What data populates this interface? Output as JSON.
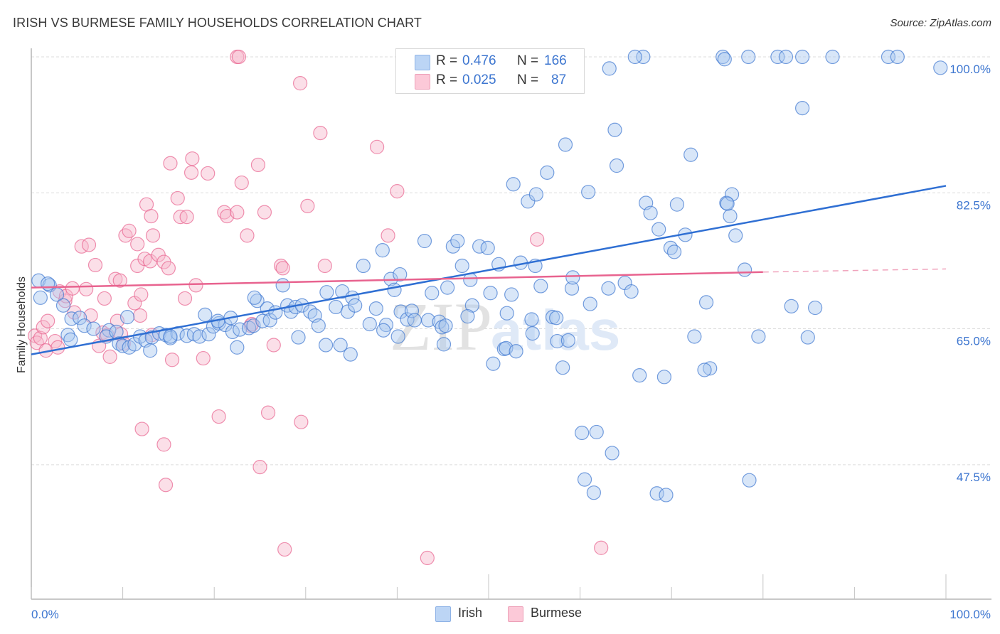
{
  "header": {
    "title": "IRISH VS BURMESE FAMILY HOUSEHOLDS CORRELATION CHART",
    "source": "Source: ZipAtlas.com"
  },
  "legend_box": {
    "rows": [
      {
        "r_label": "R =",
        "r_value": "0.476",
        "n_label": "N =",
        "n_value": "166",
        "color": "#a9c8f0"
      },
      {
        "r_label": "R =",
        "r_value": "0.025",
        "n_label": "N =",
        "n_value": "87",
        "color": "#f7b8cb"
      }
    ]
  },
  "bottom_legend": [
    {
      "label": "Irish",
      "color": "#a9c8f0"
    },
    {
      "label": "Burmese",
      "color": "#f7b8cb"
    }
  ],
  "watermark": {
    "zip": "ZIP",
    "atlas": "atlas"
  },
  "chart_data": {
    "type": "scatter",
    "title": "IRISH VS BURMESE FAMILY HOUSEHOLDS CORRELATION CHART",
    "xlabel": "",
    "ylabel": "Family Households",
    "xlim": [
      0,
      100
    ],
    "ylim": [
      30.2,
      101.5
    ],
    "x_tick_labels": [
      "0.0%",
      "100.0%"
    ],
    "y_ticks": [
      47.5,
      65.0,
      82.5,
      100.0
    ],
    "y_tick_labels": [
      "47.5%",
      "65.0%",
      "82.5%",
      "100.0%"
    ],
    "grid": true,
    "legend": "bottom-center",
    "series": [
      {
        "name": "Irish",
        "color": "#3d76d0",
        "fill": "#a9c8f0",
        "R": 0.476,
        "N": 166,
        "trend": {
          "x": [
            0,
            100
          ],
          "y": [
            61.7,
            83.4
          ]
        },
        "points": [
          [
            0.8,
            71.2
          ],
          [
            1.0,
            69.0
          ],
          [
            2.0,
            70.6
          ],
          [
            2.8,
            69.4
          ],
          [
            3.5,
            68.0
          ],
          [
            1.8,
            70.8
          ],
          [
            4.4,
            66.3
          ],
          [
            5.3,
            66.4
          ],
          [
            5.8,
            65.4
          ],
          [
            4.0,
            64.2
          ],
          [
            4.3,
            63.6
          ],
          [
            6.8,
            65.0
          ],
          [
            8.5,
            64.8
          ],
          [
            8.2,
            64.0
          ],
          [
            9.3,
            64.6
          ],
          [
            9.6,
            63.1
          ],
          [
            10.0,
            62.8
          ],
          [
            10.7,
            62.6
          ],
          [
            11.3,
            63.0
          ],
          [
            11.9,
            64.0
          ],
          [
            12.5,
            63.5
          ],
          [
            13.2,
            63.9
          ],
          [
            13.0,
            62.2
          ],
          [
            14.0,
            64.4
          ],
          [
            14.7,
            64.2
          ],
          [
            15.2,
            63.8
          ],
          [
            16.0,
            64.4
          ],
          [
            17.0,
            64.1
          ],
          [
            17.8,
            64.3
          ],
          [
            18.4,
            64.0
          ],
          [
            19.0,
            66.8
          ],
          [
            19.4,
            64.3
          ],
          [
            19.9,
            65.3
          ],
          [
            20.5,
            65.7
          ],
          [
            21.2,
            65.5
          ],
          [
            21.8,
            66.4
          ],
          [
            22.0,
            64.6
          ],
          [
            22.5,
            62.6
          ],
          [
            22.8,
            64.9
          ],
          [
            23.8,
            65.1
          ],
          [
            24.7,
            68.6
          ],
          [
            24.3,
            65.4
          ],
          [
            25.3,
            66.0
          ],
          [
            25.8,
            67.6
          ],
          [
            26.1,
            66.1
          ],
          [
            26.7,
            67.1
          ],
          [
            27.5,
            70.6
          ],
          [
            28.0,
            68.0
          ],
          [
            28.4,
            67.2
          ],
          [
            28.9,
            67.8
          ],
          [
            29.6,
            68.0
          ],
          [
            30.5,
            67.2
          ],
          [
            31.0,
            66.7
          ],
          [
            31.4,
            65.4
          ],
          [
            32.3,
            69.7
          ],
          [
            32.2,
            62.9
          ],
          [
            33.3,
            67.8
          ],
          [
            33.8,
            62.9
          ],
          [
            34.0,
            69.8
          ],
          [
            34.6,
            67.2
          ],
          [
            35.1,
            69.0
          ],
          [
            34.9,
            61.7
          ],
          [
            35.4,
            68.0
          ],
          [
            36.3,
            73.1
          ],
          [
            37.0,
            65.6
          ],
          [
            37.7,
            67.6
          ],
          [
            38.4,
            75.1
          ],
          [
            38.8,
            65.5
          ],
          [
            39.3,
            71.4
          ],
          [
            39.7,
            70.0
          ],
          [
            40.3,
            72.0
          ],
          [
            40.4,
            67.2
          ],
          [
            40.1,
            64.0
          ],
          [
            41.1,
            66.2
          ],
          [
            41.6,
            67.3
          ],
          [
            41.9,
            66.1
          ],
          [
            43.0,
            76.3
          ],
          [
            43.4,
            66.1
          ],
          [
            43.8,
            69.6
          ],
          [
            44.6,
            65.9
          ],
          [
            44.9,
            65.2
          ],
          [
            45.3,
            65.4
          ],
          [
            45.5,
            70.3
          ],
          [
            46.1,
            75.6
          ],
          [
            46.6,
            76.3
          ],
          [
            47.1,
            73.1
          ],
          [
            48.0,
            71.3
          ],
          [
            48.2,
            68.0
          ],
          [
            49.0,
            75.6
          ],
          [
            49.9,
            75.4
          ],
          [
            50.2,
            69.6
          ],
          [
            50.5,
            60.5
          ],
          [
            51.1,
            73.3
          ],
          [
            51.7,
            62.4
          ],
          [
            51.9,
            62.5
          ],
          [
            52.0,
            67.0
          ],
          [
            52.5,
            69.4
          ],
          [
            52.7,
            83.6
          ],
          [
            53.5,
            73.5
          ],
          [
            54.3,
            81.4
          ],
          [
            54.7,
            66.2
          ],
          [
            54.8,
            64.4
          ],
          [
            55.1,
            73.1
          ],
          [
            55.2,
            82.3
          ],
          [
            55.7,
            70.5
          ],
          [
            56.4,
            85.1
          ],
          [
            57.0,
            66.5
          ],
          [
            57.5,
            63.4
          ],
          [
            58.4,
            88.7
          ],
          [
            58.1,
            60.0
          ],
          [
            59.1,
            70.2
          ],
          [
            60.2,
            51.6
          ],
          [
            60.9,
            82.6
          ],
          [
            61.1,
            68.2
          ],
          [
            61.5,
            43.9
          ],
          [
            63.1,
            70.2
          ],
          [
            63.8,
            90.6
          ],
          [
            63.5,
            49.0
          ],
          [
            64.0,
            86.0
          ],
          [
            64.9,
            70.9
          ],
          [
            65.6,
            69.8
          ],
          [
            67.2,
            81.2
          ],
          [
            67.7,
            79.9
          ],
          [
            68.6,
            77.8
          ],
          [
            69.2,
            58.8
          ],
          [
            69.9,
            75.4
          ],
          [
            70.3,
            74.9
          ],
          [
            70.6,
            81.0
          ],
          [
            71.5,
            77.1
          ],
          [
            72.1,
            87.4
          ],
          [
            72.5,
            64.0
          ],
          [
            73.8,
            68.4
          ],
          [
            74.2,
            59.9
          ],
          [
            76.0,
            81.2
          ],
          [
            76.6,
            82.3
          ],
          [
            76.4,
            79.5
          ],
          [
            78.0,
            72.6
          ],
          [
            78.5,
            45.5
          ],
          [
            79.5,
            64.0
          ],
          [
            83.1,
            67.9
          ],
          [
            84.3,
            93.4
          ],
          [
            84.9,
            63.9
          ],
          [
            85.7,
            67.7
          ],
          [
            66.5,
            59.0
          ],
          [
            68.4,
            43.8
          ],
          [
            69.4,
            43.6
          ],
          [
            73.6,
            59.7
          ],
          [
            76.1,
            81.1
          ],
          [
            77.0,
            77.0
          ],
          [
            61.8,
            51.7
          ],
          [
            60.5,
            45.6
          ],
          [
            53.0,
            62.1
          ],
          [
            57.4,
            66.4
          ],
          [
            59.2,
            71.6
          ],
          [
            58.7,
            63.5
          ],
          [
            66.9,
            100.0
          ],
          [
            63.2,
            98.5
          ],
          [
            66.0,
            100.0
          ],
          [
            75.6,
            100.0
          ],
          [
            75.8,
            99.7
          ],
          [
            78.4,
            100.0
          ],
          [
            81.6,
            100.0
          ],
          [
            82.5,
            100.0
          ],
          [
            84.3,
            100.0
          ],
          [
            87.6,
            100.0
          ],
          [
            93.7,
            100.0
          ],
          [
            94.7,
            100.0
          ],
          [
            99.4,
            98.6
          ],
          [
            45.1,
            63.0
          ],
          [
            47.7,
            66.6
          ],
          [
            38.5,
            64.8
          ],
          [
            24.4,
            69.0
          ],
          [
            29.2,
            63.9
          ],
          [
            20.4,
            66.0
          ],
          [
            15.2,
            64.0
          ],
          [
            10.5,
            66.5
          ]
        ]
      },
      {
        "name": "Burmese",
        "color": "#e8638f",
        "fill": "#f7b8cb",
        "R": 0.025,
        "N": 87,
        "trend": {
          "x": [
            0,
            80
          ],
          "y": [
            70.3,
            72.3
          ],
          "dashed_extension": {
            "x": [
              80,
              100
            ],
            "y": [
              72.3,
              72.7
            ]
          }
        },
        "points": [
          [
            0.4,
            64.1
          ],
          [
            0.6,
            63.2
          ],
          [
            1.0,
            63.8
          ],
          [
            1.3,
            65.2
          ],
          [
            1.8,
            66.0
          ],
          [
            1.6,
            62.2
          ],
          [
            2.6,
            63.4
          ],
          [
            2.9,
            62.6
          ],
          [
            3.1,
            69.8
          ],
          [
            3.7,
            68.6
          ],
          [
            3.8,
            69.2
          ],
          [
            4.5,
            70.2
          ],
          [
            4.7,
            67.1
          ],
          [
            5.5,
            75.6
          ],
          [
            6.0,
            70.1
          ],
          [
            6.3,
            75.8
          ],
          [
            6.5,
            66.7
          ],
          [
            7.0,
            73.2
          ],
          [
            7.4,
            62.8
          ],
          [
            7.8,
            64.5
          ],
          [
            8.0,
            68.9
          ],
          [
            8.3,
            64.2
          ],
          [
            8.6,
            61.4
          ],
          [
            9.2,
            71.4
          ],
          [
            9.7,
            71.2
          ],
          [
            9.4,
            66.0
          ],
          [
            9.8,
            64.3
          ],
          [
            10.1,
            63.1
          ],
          [
            10.3,
            77.0
          ],
          [
            10.7,
            77.6
          ],
          [
            11.3,
            68.3
          ],
          [
            11.6,
            75.9
          ],
          [
            11.6,
            73.1
          ],
          [
            11.9,
            66.7
          ],
          [
            12.0,
            69.4
          ],
          [
            12.4,
            74.0
          ],
          [
            12.1,
            52.1
          ],
          [
            12.6,
            81.0
          ],
          [
            13.0,
            73.7
          ],
          [
            13.1,
            79.5
          ],
          [
            13.2,
            64.2
          ],
          [
            13.3,
            77.0
          ],
          [
            13.9,
            74.5
          ],
          [
            14.5,
            50.1
          ],
          [
            14.5,
            73.6
          ],
          [
            14.7,
            44.9
          ],
          [
            15.0,
            72.8
          ],
          [
            15.2,
            86.3
          ],
          [
            15.4,
            61.0
          ],
          [
            16.0,
            81.8
          ],
          [
            16.3,
            79.4
          ],
          [
            16.8,
            68.9
          ],
          [
            17.0,
            79.4
          ],
          [
            17.5,
            85.1
          ],
          [
            17.6,
            86.9
          ],
          [
            18.0,
            70.6
          ],
          [
            18.8,
            61.2
          ],
          [
            19.3,
            85.0
          ],
          [
            20.5,
            53.7
          ],
          [
            21.1,
            80.0
          ],
          [
            21.4,
            79.5
          ],
          [
            22.5,
            80.0
          ],
          [
            22.5,
            100.0
          ],
          [
            22.7,
            100.0
          ],
          [
            23.0,
            83.8
          ],
          [
            23.6,
            77.0
          ],
          [
            24.0,
            65.4
          ],
          [
            24.1,
            65.6
          ],
          [
            24.8,
            86.1
          ],
          [
            25.0,
            47.2
          ],
          [
            25.5,
            80.0
          ],
          [
            25.9,
            54.2
          ],
          [
            26.5,
            62.9
          ],
          [
            27.3,
            73.1
          ],
          [
            27.5,
            72.8
          ],
          [
            27.7,
            36.6
          ],
          [
            29.4,
            96.6
          ],
          [
            29.5,
            53.0
          ],
          [
            30.2,
            80.8
          ],
          [
            31.6,
            90.2
          ],
          [
            32.1,
            73.1
          ],
          [
            37.8,
            88.4
          ],
          [
            39.0,
            77.0
          ],
          [
            40.0,
            82.7
          ],
          [
            43.3,
            35.5
          ],
          [
            55.3,
            76.5
          ],
          [
            62.3,
            36.8
          ]
        ]
      }
    ]
  }
}
